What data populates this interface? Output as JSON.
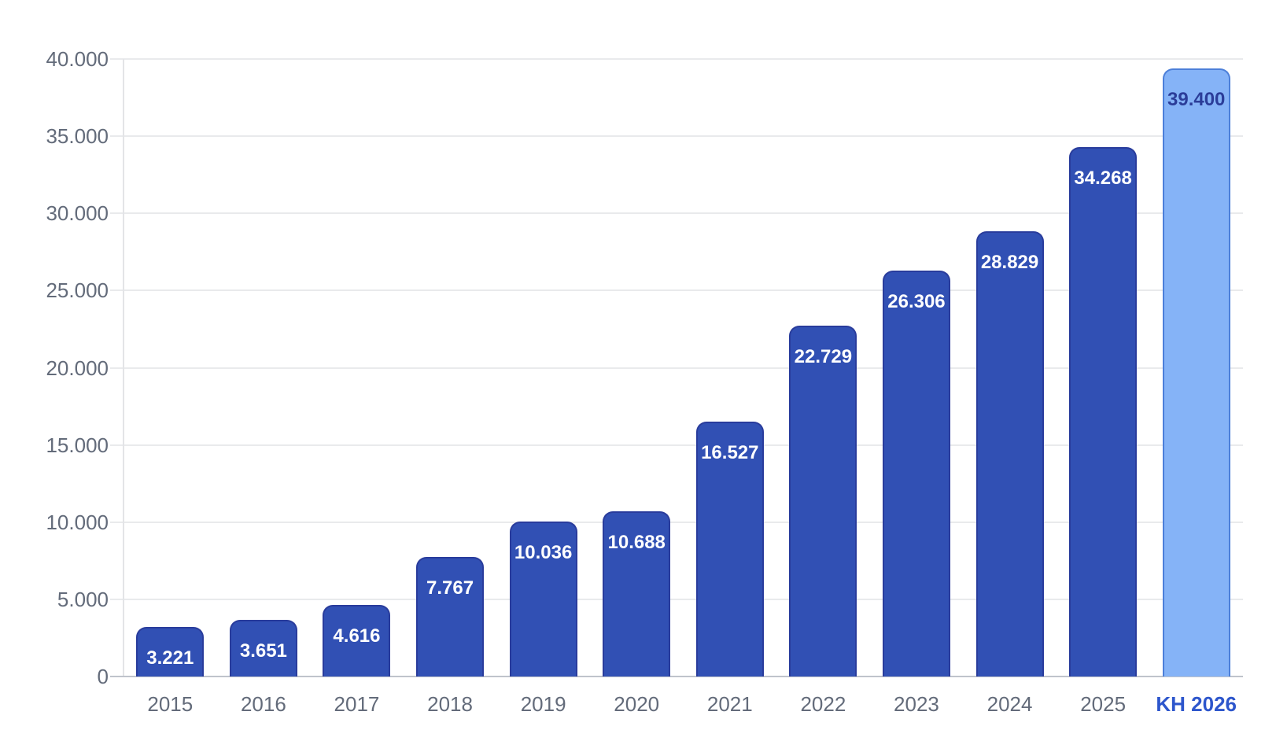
{
  "chart_data": {
    "type": "bar",
    "title": "",
    "xlabel": "",
    "ylabel": "",
    "categories": [
      "2015",
      "2016",
      "2017",
      "2018",
      "2019",
      "2020",
      "2021",
      "2022",
      "2023",
      "2024",
      "2025",
      "KH 2026"
    ],
    "values": [
      3221,
      3651,
      4616,
      7767,
      10036,
      10688,
      16527,
      22729,
      26306,
      28829,
      34268,
      39400
    ],
    "value_labels": [
      "3.221",
      "3.651",
      "4.616",
      "7.767",
      "10.036",
      "10.688",
      "16.527",
      "22.729",
      "26.306",
      "28.829",
      "34.268",
      "39.400"
    ],
    "highlight_index": 11,
    "highlight_category": "KH 2026",
    "ylim": [
      0,
      40000
    ],
    "y_ticks": [
      0,
      5000,
      10000,
      15000,
      20000,
      25000,
      30000,
      35000,
      40000
    ],
    "y_tick_labels": [
      "0",
      "5.000",
      "10.000",
      "15.000",
      "20.000",
      "25.000",
      "30.000",
      "35.000",
      "40.000"
    ],
    "grid": true,
    "legend": false,
    "colors": {
      "bar_fill": "#3150b4",
      "bar_border": "#293c9c",
      "bar_label_text": "#ffffff",
      "highlight_fill": "#85b3f7",
      "highlight_border": "#4c7fd9",
      "highlight_label_text": "#2b3d99",
      "axis_text": "#636b7a",
      "highlight_axis_text": "#2d56cc",
      "gridline": "#e9eaec",
      "baseline": "#bfc3cb",
      "background": "#ffffff"
    }
  }
}
